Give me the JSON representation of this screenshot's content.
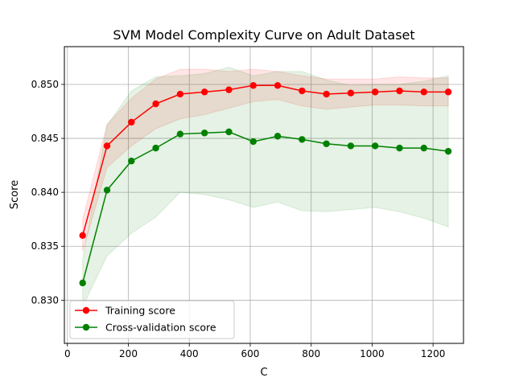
{
  "chart_data": {
    "type": "line",
    "title": "SVM Model Complexity Curve on Adult Dataset",
    "xlabel": "C",
    "ylabel": "Score",
    "xlim": [
      -10,
      1300
    ],
    "ylim": [
      0.826,
      0.8535
    ],
    "xticks": [
      0,
      200,
      400,
      600,
      800,
      1000,
      1200
    ],
    "xtick_labels": [
      "0",
      "200",
      "400",
      "600",
      "800",
      "1000",
      "1200"
    ],
    "yticks": [
      0.83,
      0.835,
      0.84,
      0.845,
      0.85
    ],
    "ytick_labels": [
      "0.830",
      "0.835",
      "0.840",
      "0.845",
      "0.850"
    ],
    "grid": true,
    "legend_position": "lower-left",
    "x": [
      50,
      130,
      210,
      290,
      370,
      450,
      530,
      610,
      690,
      770,
      850,
      930,
      1010,
      1090,
      1170,
      1250
    ],
    "series": [
      {
        "name": "Training score",
        "color": "#ff0000",
        "band_color": "#ff0000",
        "values": [
          0.836,
          0.8443,
          0.8465,
          0.8482,
          0.8491,
          0.8493,
          0.8495,
          0.8499,
          0.8499,
          0.8494,
          0.8491,
          0.8492,
          0.8493,
          0.8494,
          0.8493,
          0.8493
        ],
        "band_upper": [
          0.8375,
          0.8463,
          0.8487,
          0.8505,
          0.8514,
          0.8514,
          0.8512,
          0.8514,
          0.8512,
          0.8508,
          0.8505,
          0.8505,
          0.8505,
          0.8507,
          0.8506,
          0.8506
        ],
        "band_lower": [
          0.8345,
          0.8423,
          0.8443,
          0.8459,
          0.8468,
          0.8472,
          0.8478,
          0.8484,
          0.8486,
          0.848,
          0.8477,
          0.8479,
          0.8481,
          0.8481,
          0.848,
          0.848
        ]
      },
      {
        "name": "Cross-validation score",
        "color": "#008000",
        "band_color": "#008000",
        "values": [
          0.8316,
          0.8402,
          0.8429,
          0.8441,
          0.8454,
          0.8455,
          0.8456,
          0.8447,
          0.8452,
          0.8449,
          0.8445,
          0.8443,
          0.8443,
          0.8441,
          0.8441,
          0.8438
        ],
        "band_upper": [
          0.8338,
          0.8462,
          0.8494,
          0.8507,
          0.8508,
          0.851,
          0.8516,
          0.8508,
          0.8512,
          0.8512,
          0.8504,
          0.8499,
          0.85,
          0.85,
          0.8503,
          0.8508
        ],
        "band_lower": [
          0.8294,
          0.8341,
          0.8362,
          0.8377,
          0.84,
          0.8398,
          0.8393,
          0.8386,
          0.8391,
          0.8383,
          0.8382,
          0.8384,
          0.8386,
          0.8382,
          0.8376,
          0.8368
        ]
      }
    ]
  }
}
